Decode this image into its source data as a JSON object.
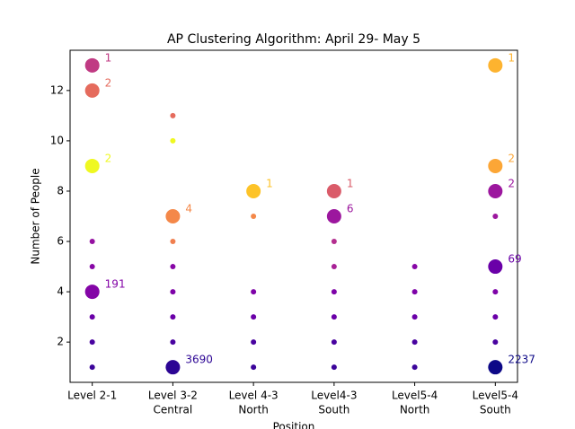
{
  "chart_data": {
    "type": "scatter",
    "title": "AP Clustering Algorithm: April 29- May 5",
    "x_label": "Position",
    "y_label": "Number of People",
    "categories": [
      [
        "Level 2-1"
      ],
      [
        "Level 3-2",
        "Central"
      ],
      [
        "Level 4-3",
        "North"
      ],
      [
        "Level4-3",
        "South"
      ],
      [
        "Level5-4",
        "North"
      ],
      [
        "Level5-4",
        "South"
      ]
    ],
    "xlim": [
      -0.275,
      5.275
    ],
    "ylim": [
      0.4,
      13.6
    ],
    "yticks": [
      2,
      4,
      6,
      8,
      10,
      12
    ],
    "points": [
      {
        "x": 0,
        "y": 13,
        "count": 1,
        "color": "#c03a83"
      },
      {
        "x": 0,
        "y": 12,
        "count": 2,
        "color": "#e56b5d"
      },
      {
        "x": 0,
        "y": 9,
        "count": 2,
        "color": "#eff821"
      },
      {
        "x": 0,
        "y": 6,
        "color": "#9511a1"
      },
      {
        "x": 0,
        "y": 5,
        "color": "#8707a6"
      },
      {
        "x": 0,
        "y": 4,
        "count": 191,
        "color": "#8405a7"
      },
      {
        "x": 0,
        "y": 3,
        "color": "#6a00a8"
      },
      {
        "x": 0,
        "y": 2,
        "color": "#4903a0"
      },
      {
        "x": 0,
        "y": 1,
        "color": "#3b049a"
      },
      {
        "x": 1,
        "y": 11,
        "color": "#e56b5d"
      },
      {
        "x": 1,
        "y": 10,
        "color": "#eff821"
      },
      {
        "x": 1,
        "y": 7,
        "count": 4,
        "color": "#f48849"
      },
      {
        "x": 1,
        "y": 6,
        "color": "#f07f4f"
      },
      {
        "x": 1,
        "y": 5,
        "color": "#8707a6"
      },
      {
        "x": 1,
        "y": 4,
        "color": "#7e03a8"
      },
      {
        "x": 1,
        "y": 3,
        "color": "#6a00a8"
      },
      {
        "x": 1,
        "y": 2,
        "color": "#4903a0"
      },
      {
        "x": 1,
        "y": 1,
        "count": 3690,
        "color": "#2c0594"
      },
      {
        "x": 2,
        "y": 8,
        "count": 1,
        "color": "#fdc328"
      },
      {
        "x": 2,
        "y": 7,
        "color": "#f48849"
      },
      {
        "x": 2,
        "y": 4,
        "color": "#7e03a8"
      },
      {
        "x": 2,
        "y": 3,
        "color": "#6a00a8"
      },
      {
        "x": 2,
        "y": 2,
        "color": "#4903a0"
      },
      {
        "x": 2,
        "y": 1,
        "color": "#3b049a"
      },
      {
        "x": 3,
        "y": 8,
        "count": 1,
        "color": "#da5b69"
      },
      {
        "x": 3,
        "y": 7,
        "count": 6,
        "color": "#9c179e"
      },
      {
        "x": 3,
        "y": 6,
        "color": "#b42e8f"
      },
      {
        "x": 3,
        "y": 5,
        "color": "#a82296"
      },
      {
        "x": 3,
        "y": 4,
        "color": "#7e03a8"
      },
      {
        "x": 3,
        "y": 3,
        "color": "#6a00a8"
      },
      {
        "x": 3,
        "y": 2,
        "color": "#4903a0"
      },
      {
        "x": 3,
        "y": 1,
        "color": "#3b049a"
      },
      {
        "x": 4,
        "y": 5,
        "color": "#8707a6"
      },
      {
        "x": 4,
        "y": 4,
        "color": "#7e03a8"
      },
      {
        "x": 4,
        "y": 3,
        "color": "#6a00a8"
      },
      {
        "x": 4,
        "y": 2,
        "color": "#4903a0"
      },
      {
        "x": 4,
        "y": 1,
        "color": "#3b049a"
      },
      {
        "x": 5,
        "y": 13,
        "count": 1,
        "color": "#fdb32f"
      },
      {
        "x": 5,
        "y": 9,
        "count": 2,
        "color": "#fca636"
      },
      {
        "x": 5,
        "y": 8,
        "count": 2,
        "color": "#9c179e"
      },
      {
        "x": 5,
        "y": 7,
        "color": "#9c179e"
      },
      {
        "x": 5,
        "y": 5,
        "count": 69,
        "color": "#6a00a8"
      },
      {
        "x": 5,
        "y": 4,
        "color": "#7e03a8"
      },
      {
        "x": 5,
        "y": 3,
        "color": "#6a00a8"
      },
      {
        "x": 5,
        "y": 2,
        "color": "#4903a0"
      },
      {
        "x": 5,
        "y": 1,
        "count": 2237,
        "color": "#0d0887"
      }
    ]
  }
}
